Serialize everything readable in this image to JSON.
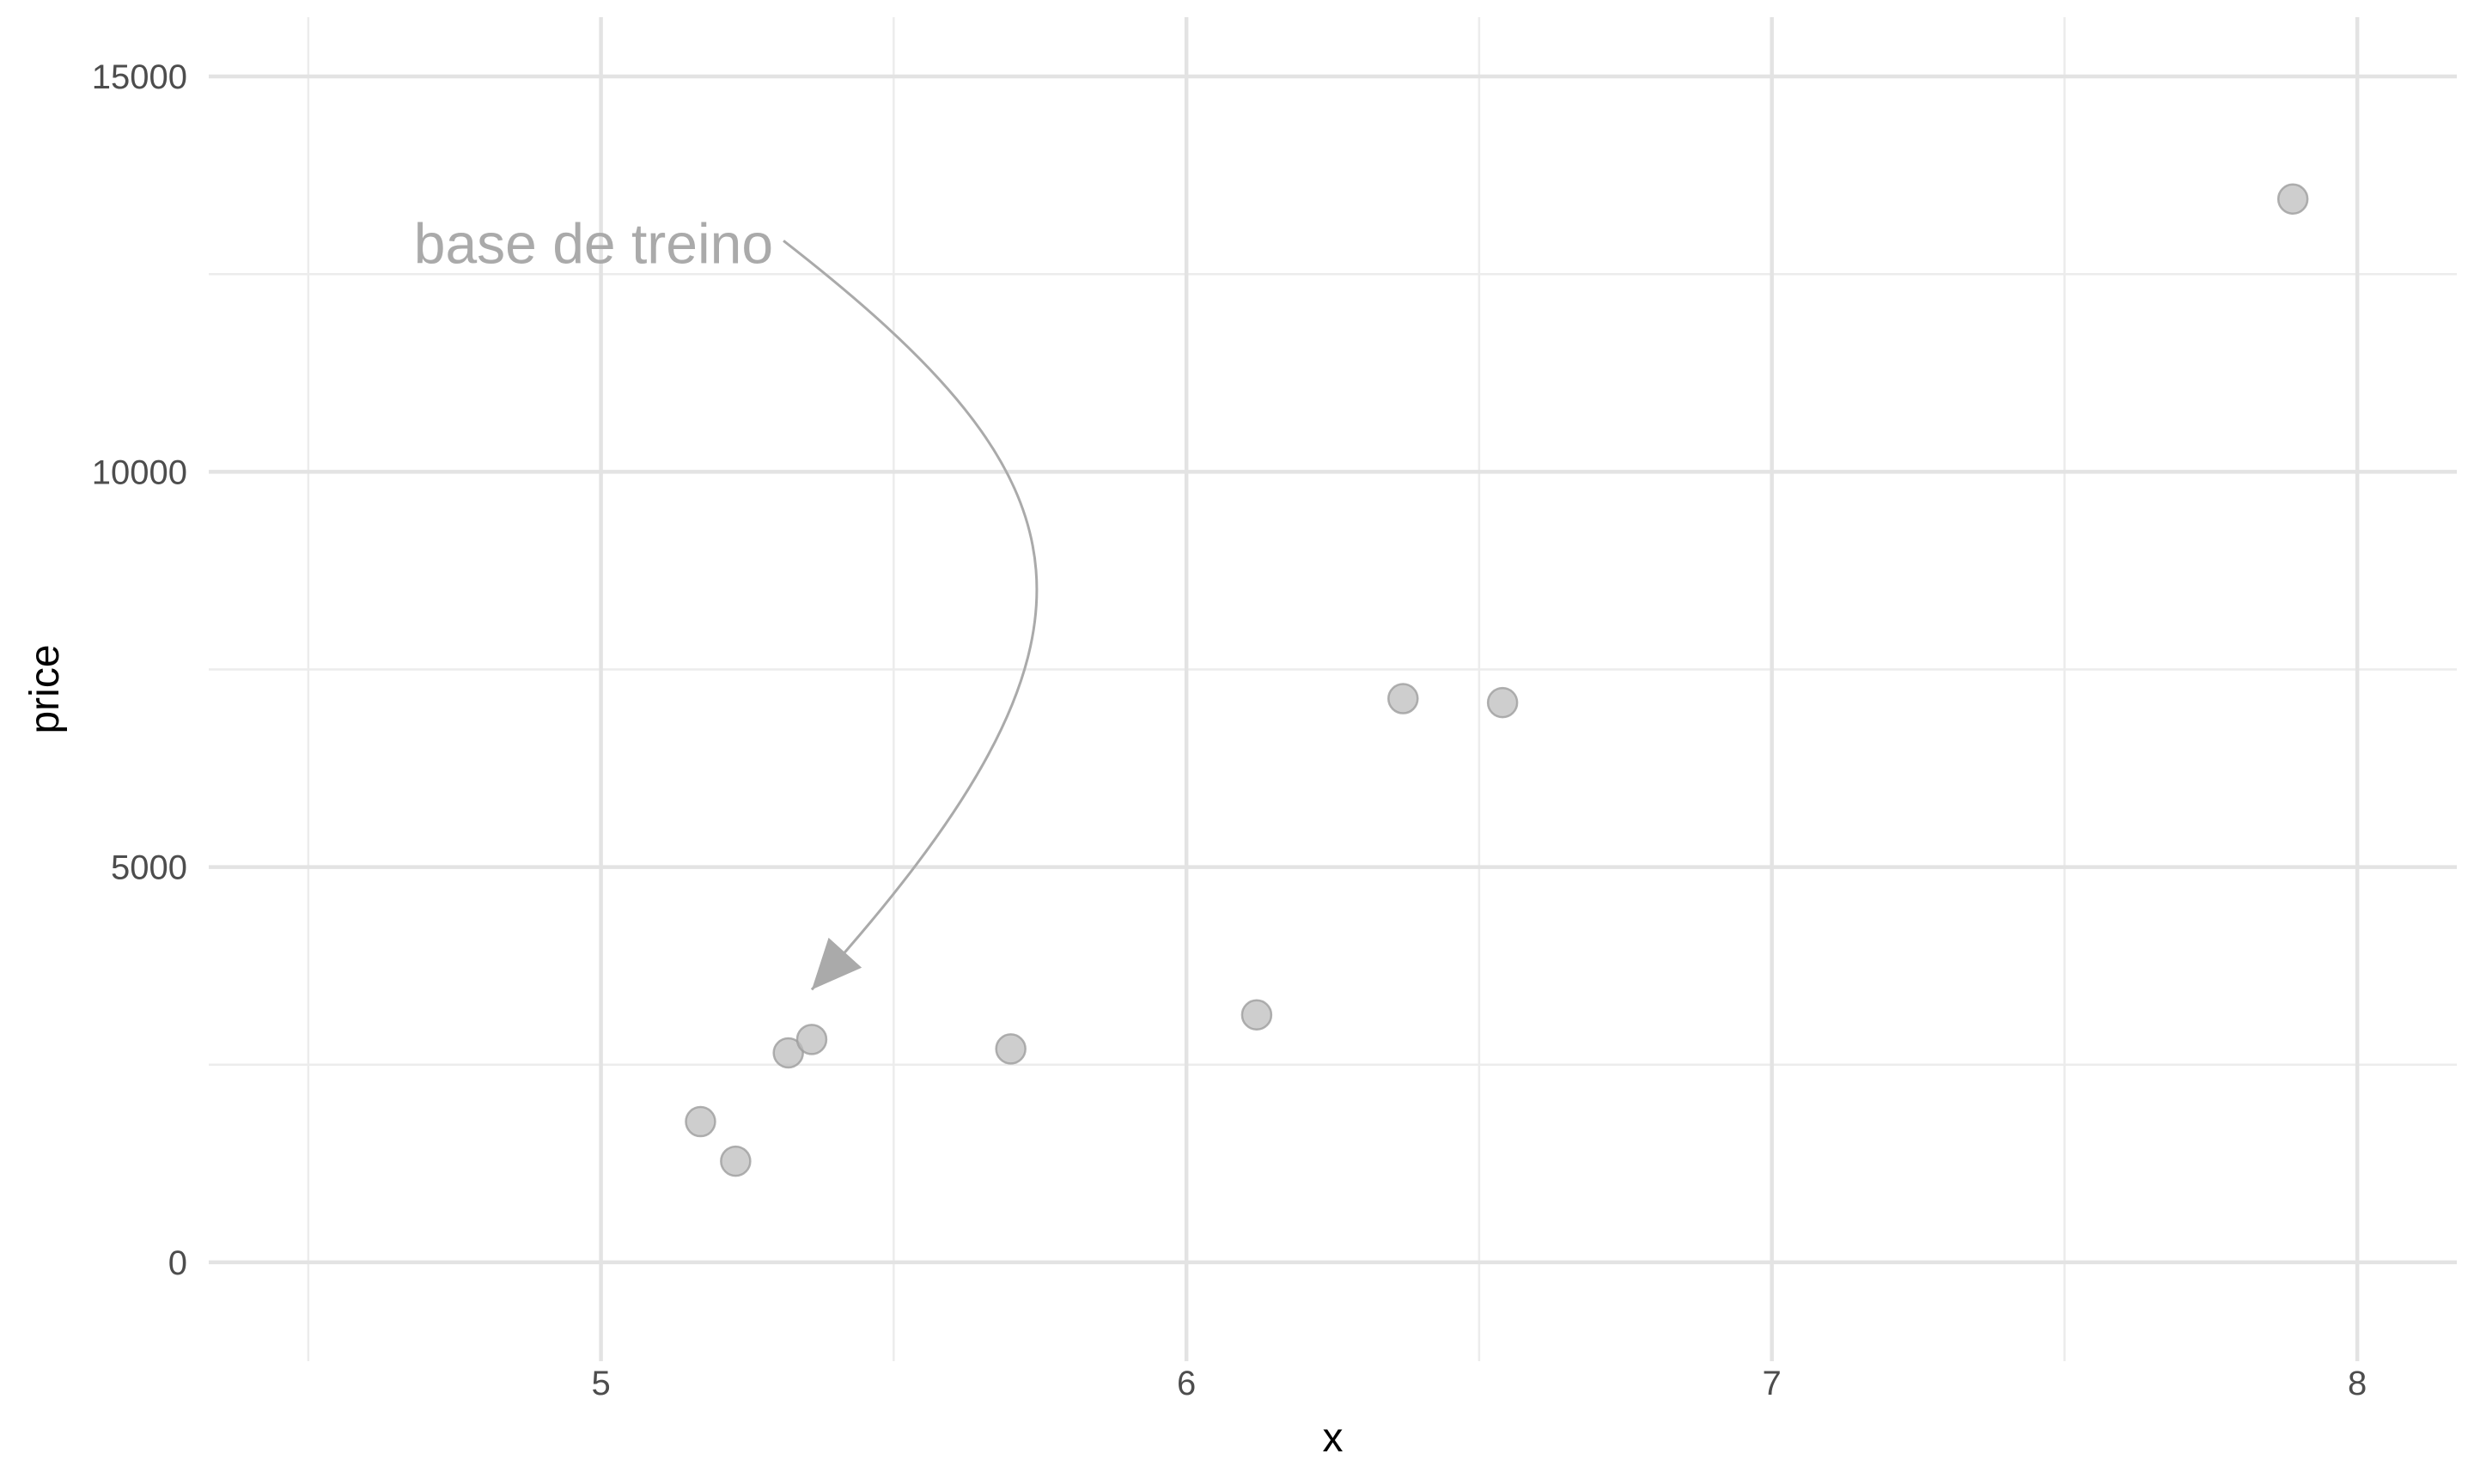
{
  "chart_data": {
    "type": "scatter",
    "title": "",
    "xlabel": "x",
    "ylabel": "price",
    "xlim": [
      4.33,
      8.17
    ],
    "ylim": [
      -1250,
      15750
    ],
    "x_ticks": [
      5,
      6,
      7,
      8
    ],
    "x_tick_labels": [
      "5",
      "6",
      "7",
      "8"
    ],
    "x_minor_ticks": [
      4.5,
      5.5,
      6.5,
      7.5
    ],
    "y_ticks": [
      0,
      5000,
      10000,
      15000
    ],
    "y_tick_labels": [
      "0",
      "5000",
      "10000",
      "15000"
    ],
    "y_minor_ticks": [
      2500,
      7500,
      12500
    ],
    "grid": true,
    "legend": "none",
    "point_color": "#bdbdbd",
    "points": [
      {
        "x": 5.17,
        "y": 1780
      },
      {
        "x": 5.23,
        "y": 1280
      },
      {
        "x": 5.32,
        "y": 2650
      },
      {
        "x": 5.36,
        "y": 2820
      },
      {
        "x": 5.7,
        "y": 2700
      },
      {
        "x": 6.12,
        "y": 3130
      },
      {
        "x": 6.37,
        "y": 7130
      },
      {
        "x": 6.54,
        "y": 7080
      },
      {
        "x": 7.89,
        "y": 13450
      }
    ],
    "annotation": {
      "text": "base de treino",
      "color": "#aaaaaa",
      "text_anchor_point": {
        "x": 5.3,
        "y": 12900
      },
      "arrow_tip": {
        "x": 5.36,
        "y": 3450
      }
    }
  }
}
